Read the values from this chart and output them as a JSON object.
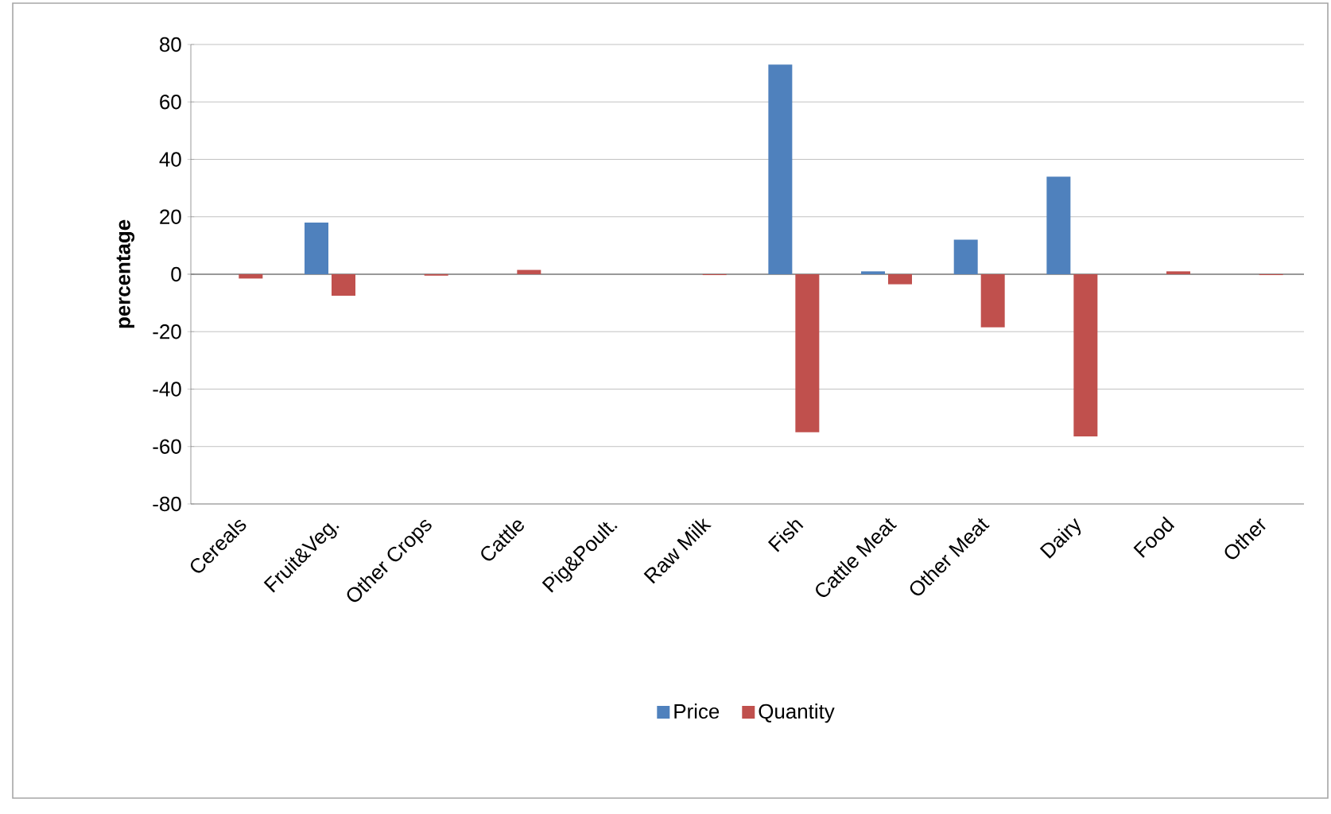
{
  "chart_data": {
    "type": "bar",
    "ylabel": "percentage",
    "categories": [
      "Cereals",
      "Fruit&Veg.",
      "Other Crops",
      "Cattle",
      "Pig&Poult.",
      "Raw Milk",
      "Fish",
      "Cattle Meat",
      "Other Meat",
      "Dairy",
      "Food",
      "Other"
    ],
    "series": [
      {
        "name": "Price",
        "color": "#4f81bd",
        "values": [
          0,
          18,
          0,
          0,
          0,
          0,
          73,
          1,
          12,
          34,
          0,
          0
        ]
      },
      {
        "name": "Quantity",
        "color": "#c0504d",
        "values": [
          -1.5,
          -7.5,
          -0.5,
          1.5,
          0,
          -0.3,
          -55,
          -3.5,
          -18.5,
          -56.5,
          1,
          -0.3
        ]
      }
    ],
    "ylim": [
      -80,
      80
    ],
    "yticks": [
      -80,
      -60,
      -40,
      -20,
      0,
      20,
      40,
      60,
      80
    ],
    "grid": "y",
    "legend": "bottom"
  }
}
